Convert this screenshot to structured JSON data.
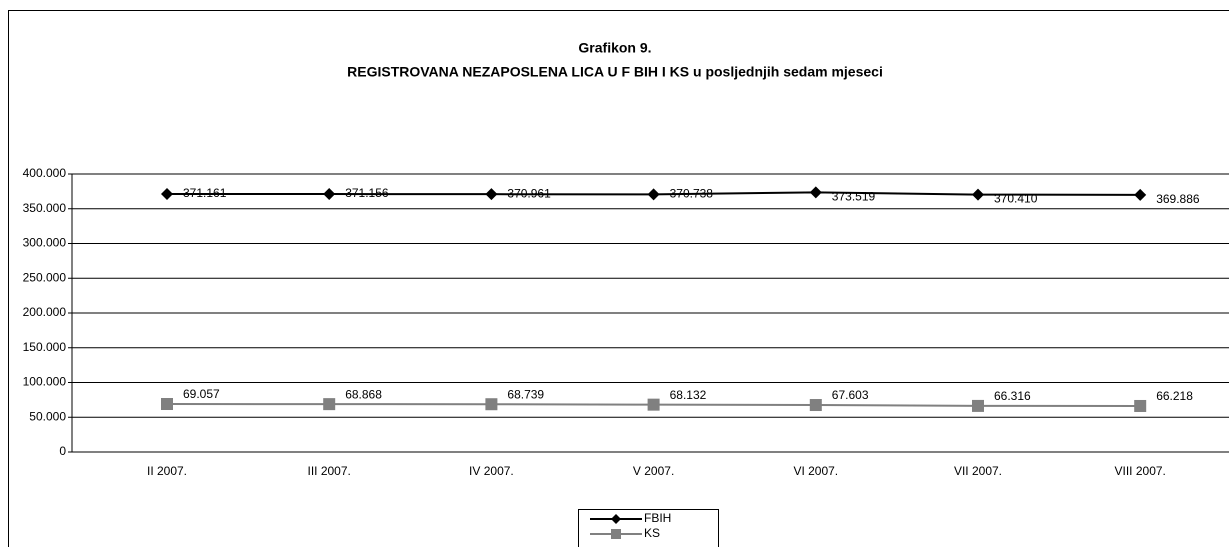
{
  "chart_data": {
    "type": "line",
    "title": "Grafikon 9.",
    "subtitle": "REGISTROVANA NEZAPOSLENA LICA U F BIH I KS u posljednjih sedam mjeseci",
    "categories": [
      "II 2007.",
      "III 2007.",
      "IV 2007.",
      "V 2007.",
      "VI 2007.",
      "VII 2007.",
      "VIII 2007."
    ],
    "series": [
      {
        "name": "FBIH",
        "color": "#000000",
        "marker": "diamond",
        "values": [
          371161,
          371156,
          370961,
          370738,
          373519,
          370410,
          369886
        ],
        "value_labels": [
          "371.161",
          "371.156",
          "370.961",
          "370.738",
          "373.519",
          "370.410",
          "369.886"
        ]
      },
      {
        "name": "KS",
        "color": "#808080",
        "marker": "square",
        "values": [
          69057,
          68868,
          68739,
          68132,
          67603,
          66316,
          66218
        ],
        "value_labels": [
          "69.057",
          "68.868",
          "68.739",
          "68.132",
          "67.603",
          "66.316",
          "66.218"
        ]
      }
    ],
    "ylim": [
      0,
      400000
    ],
    "yticks": [
      0,
      {
        "value": 50000,
        "label": "50.000"
      },
      {
        "value": 100000,
        "label": "100.000"
      },
      {
        "value": 150000,
        "label": "150.000"
      },
      {
        "value": 200000,
        "label": "200.000"
      },
      {
        "value": 250000,
        "label": "250.000"
      },
      {
        "value": 300000,
        "label": "300.000"
      },
      {
        "value": 350000,
        "label": "350.000"
      },
      {
        "value": 400000,
        "label": "400.000"
      }
    ],
    "grid": true,
    "legend": "bottom"
  }
}
